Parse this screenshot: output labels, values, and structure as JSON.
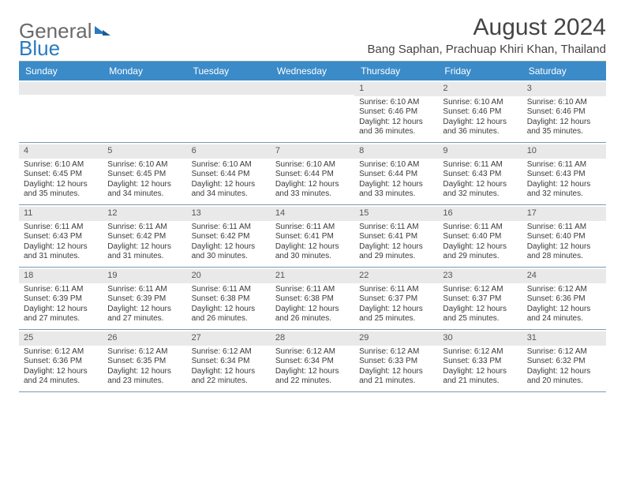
{
  "brand": {
    "part1": "General",
    "part2": "Blue"
  },
  "title": "August 2024",
  "subtitle": "Bang Saphan, Prachuap Khiri Khan, Thailand",
  "colors": {
    "header_bg": "#3b8bc9",
    "header_text": "#ffffff",
    "daynum_bg": "#e9e9e9",
    "border": "#7a9ab0",
    "text": "#3a3a3a",
    "brand_gray": "#6a6a6a",
    "brand_blue": "#2a7abf"
  },
  "dayNames": [
    "Sunday",
    "Monday",
    "Tuesday",
    "Wednesday",
    "Thursday",
    "Friday",
    "Saturday"
  ],
  "weeks": [
    [
      {
        "n": "",
        "lines": []
      },
      {
        "n": "",
        "lines": []
      },
      {
        "n": "",
        "lines": []
      },
      {
        "n": "",
        "lines": []
      },
      {
        "n": "1",
        "lines": [
          "Sunrise: 6:10 AM",
          "Sunset: 6:46 PM",
          "Daylight: 12 hours and 36 minutes."
        ]
      },
      {
        "n": "2",
        "lines": [
          "Sunrise: 6:10 AM",
          "Sunset: 6:46 PM",
          "Daylight: 12 hours and 36 minutes."
        ]
      },
      {
        "n": "3",
        "lines": [
          "Sunrise: 6:10 AM",
          "Sunset: 6:46 PM",
          "Daylight: 12 hours and 35 minutes."
        ]
      }
    ],
    [
      {
        "n": "4",
        "lines": [
          "Sunrise: 6:10 AM",
          "Sunset: 6:45 PM",
          "Daylight: 12 hours and 35 minutes."
        ]
      },
      {
        "n": "5",
        "lines": [
          "Sunrise: 6:10 AM",
          "Sunset: 6:45 PM",
          "Daylight: 12 hours and 34 minutes."
        ]
      },
      {
        "n": "6",
        "lines": [
          "Sunrise: 6:10 AM",
          "Sunset: 6:44 PM",
          "Daylight: 12 hours and 34 minutes."
        ]
      },
      {
        "n": "7",
        "lines": [
          "Sunrise: 6:10 AM",
          "Sunset: 6:44 PM",
          "Daylight: 12 hours and 33 minutes."
        ]
      },
      {
        "n": "8",
        "lines": [
          "Sunrise: 6:10 AM",
          "Sunset: 6:44 PM",
          "Daylight: 12 hours and 33 minutes."
        ]
      },
      {
        "n": "9",
        "lines": [
          "Sunrise: 6:11 AM",
          "Sunset: 6:43 PM",
          "Daylight: 12 hours and 32 minutes."
        ]
      },
      {
        "n": "10",
        "lines": [
          "Sunrise: 6:11 AM",
          "Sunset: 6:43 PM",
          "Daylight: 12 hours and 32 minutes."
        ]
      }
    ],
    [
      {
        "n": "11",
        "lines": [
          "Sunrise: 6:11 AM",
          "Sunset: 6:43 PM",
          "Daylight: 12 hours and 31 minutes."
        ]
      },
      {
        "n": "12",
        "lines": [
          "Sunrise: 6:11 AM",
          "Sunset: 6:42 PM",
          "Daylight: 12 hours and 31 minutes."
        ]
      },
      {
        "n": "13",
        "lines": [
          "Sunrise: 6:11 AM",
          "Sunset: 6:42 PM",
          "Daylight: 12 hours and 30 minutes."
        ]
      },
      {
        "n": "14",
        "lines": [
          "Sunrise: 6:11 AM",
          "Sunset: 6:41 PM",
          "Daylight: 12 hours and 30 minutes."
        ]
      },
      {
        "n": "15",
        "lines": [
          "Sunrise: 6:11 AM",
          "Sunset: 6:41 PM",
          "Daylight: 12 hours and 29 minutes."
        ]
      },
      {
        "n": "16",
        "lines": [
          "Sunrise: 6:11 AM",
          "Sunset: 6:40 PM",
          "Daylight: 12 hours and 29 minutes."
        ]
      },
      {
        "n": "17",
        "lines": [
          "Sunrise: 6:11 AM",
          "Sunset: 6:40 PM",
          "Daylight: 12 hours and 28 minutes."
        ]
      }
    ],
    [
      {
        "n": "18",
        "lines": [
          "Sunrise: 6:11 AM",
          "Sunset: 6:39 PM",
          "Daylight: 12 hours and 27 minutes."
        ]
      },
      {
        "n": "19",
        "lines": [
          "Sunrise: 6:11 AM",
          "Sunset: 6:39 PM",
          "Daylight: 12 hours and 27 minutes."
        ]
      },
      {
        "n": "20",
        "lines": [
          "Sunrise: 6:11 AM",
          "Sunset: 6:38 PM",
          "Daylight: 12 hours and 26 minutes."
        ]
      },
      {
        "n": "21",
        "lines": [
          "Sunrise: 6:11 AM",
          "Sunset: 6:38 PM",
          "Daylight: 12 hours and 26 minutes."
        ]
      },
      {
        "n": "22",
        "lines": [
          "Sunrise: 6:11 AM",
          "Sunset: 6:37 PM",
          "Daylight: 12 hours and 25 minutes."
        ]
      },
      {
        "n": "23",
        "lines": [
          "Sunrise: 6:12 AM",
          "Sunset: 6:37 PM",
          "Daylight: 12 hours and 25 minutes."
        ]
      },
      {
        "n": "24",
        "lines": [
          "Sunrise: 6:12 AM",
          "Sunset: 6:36 PM",
          "Daylight: 12 hours and 24 minutes."
        ]
      }
    ],
    [
      {
        "n": "25",
        "lines": [
          "Sunrise: 6:12 AM",
          "Sunset: 6:36 PM",
          "Daylight: 12 hours and 24 minutes."
        ]
      },
      {
        "n": "26",
        "lines": [
          "Sunrise: 6:12 AM",
          "Sunset: 6:35 PM",
          "Daylight: 12 hours and 23 minutes."
        ]
      },
      {
        "n": "27",
        "lines": [
          "Sunrise: 6:12 AM",
          "Sunset: 6:34 PM",
          "Daylight: 12 hours and 22 minutes."
        ]
      },
      {
        "n": "28",
        "lines": [
          "Sunrise: 6:12 AM",
          "Sunset: 6:34 PM",
          "Daylight: 12 hours and 22 minutes."
        ]
      },
      {
        "n": "29",
        "lines": [
          "Sunrise: 6:12 AM",
          "Sunset: 6:33 PM",
          "Daylight: 12 hours and 21 minutes."
        ]
      },
      {
        "n": "30",
        "lines": [
          "Sunrise: 6:12 AM",
          "Sunset: 6:33 PM",
          "Daylight: 12 hours and 21 minutes."
        ]
      },
      {
        "n": "31",
        "lines": [
          "Sunrise: 6:12 AM",
          "Sunset: 6:32 PM",
          "Daylight: 12 hours and 20 minutes."
        ]
      }
    ]
  ]
}
